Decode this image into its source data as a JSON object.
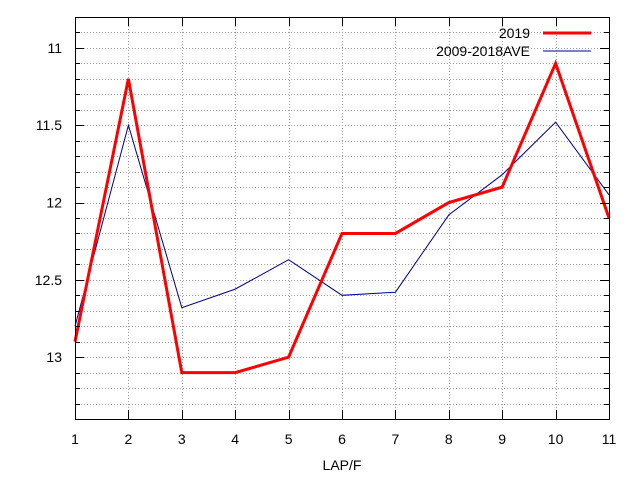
{
  "chart_data": {
    "type": "line",
    "xlabel": "LAP/F",
    "ylabel": "",
    "x": [
      1,
      2,
      3,
      4,
      5,
      6,
      7,
      8,
      9,
      10,
      11
    ],
    "xlim": [
      1,
      11
    ],
    "ylim": [
      10.8,
      13.4
    ],
    "y_inverted": true,
    "x_ticks": [
      "1",
      "2",
      "3",
      "4",
      "5",
      "6",
      "7",
      "8",
      "9",
      "10",
      "11"
    ],
    "y_ticks": [
      {
        "value": 11,
        "label": "11"
      },
      {
        "value": 11.5,
        "label": "11.5"
      },
      {
        "value": 12,
        "label": "12"
      },
      {
        "value": 12.5,
        "label": "12.5"
      },
      {
        "value": 13,
        "label": "13"
      }
    ],
    "y_minor_step": 0.1,
    "grid": true,
    "legend_position": "top-right",
    "series": [
      {
        "name": "2019",
        "color": "#ff0000",
        "values": [
          12.9,
          11.2,
          13.1,
          13.1,
          13.0,
          12.2,
          12.2,
          12.0,
          11.9,
          11.1,
          12.1
        ]
      },
      {
        "name": "2009-2018AVE",
        "color": "#00008b",
        "values": [
          12.8,
          11.5,
          12.68,
          12.56,
          12.37,
          12.6,
          12.58,
          12.08,
          11.82,
          11.48,
          11.95
        ]
      }
    ]
  }
}
